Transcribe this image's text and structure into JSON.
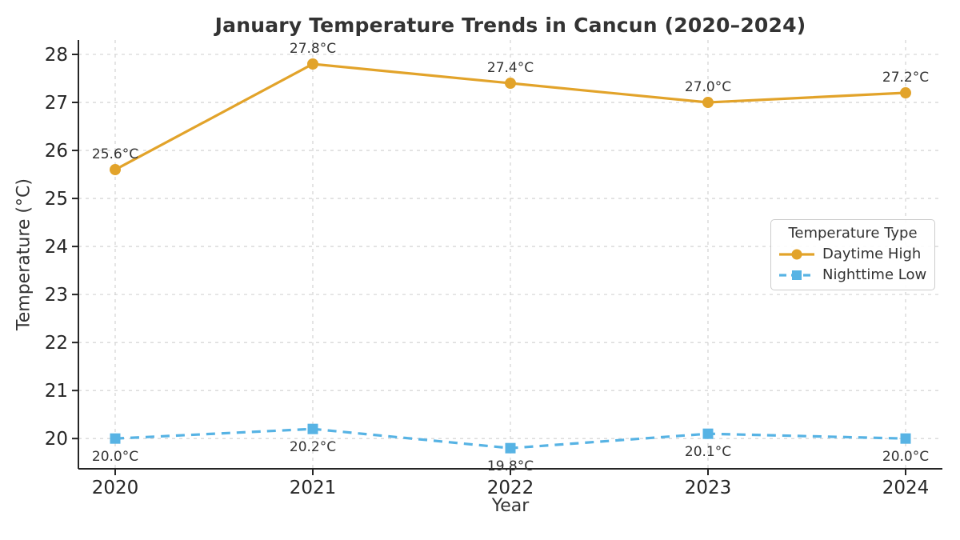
{
  "chart_data": {
    "type": "line",
    "title": "January Temperature Trends in Cancun (2020–2024)",
    "xlabel": "Year",
    "ylabel": "Temperature (°C)",
    "x": [
      2020,
      2021,
      2022,
      2023,
      2024
    ],
    "x_tick_labels": [
      "2020",
      "2021",
      "2022",
      "2023",
      "2024"
    ],
    "y_ticks": [
      20,
      21,
      22,
      23,
      24,
      25,
      26,
      27,
      28
    ],
    "ylim": [
      19.37,
      28.3
    ],
    "grid": true,
    "legend": {
      "title": "Temperature Type",
      "position": "center-right"
    },
    "series": [
      {
        "name": "Daytime High",
        "values": [
          25.6,
          27.8,
          27.4,
          27.0,
          27.2
        ],
        "point_labels": [
          "25.6°C",
          "27.8°C",
          "27.4°C",
          "27.0°C",
          "27.2°C"
        ],
        "color": "#E2A32A",
        "marker": "circle",
        "line_style": "solid",
        "label_position": "above"
      },
      {
        "name": "Nighttime Low",
        "values": [
          20.0,
          20.2,
          19.8,
          20.1,
          20.0
        ],
        "point_labels": [
          "20.0°C",
          "20.2°C",
          "19.8°C",
          "20.1°C",
          "20.0°C"
        ],
        "color": "#57B3E4",
        "marker": "square",
        "line_style": "dashed",
        "label_position": "below"
      }
    ],
    "style": {
      "grid_color": "#cfcfcf",
      "spine_color": "#262626",
      "text_color": "#333333"
    }
  }
}
